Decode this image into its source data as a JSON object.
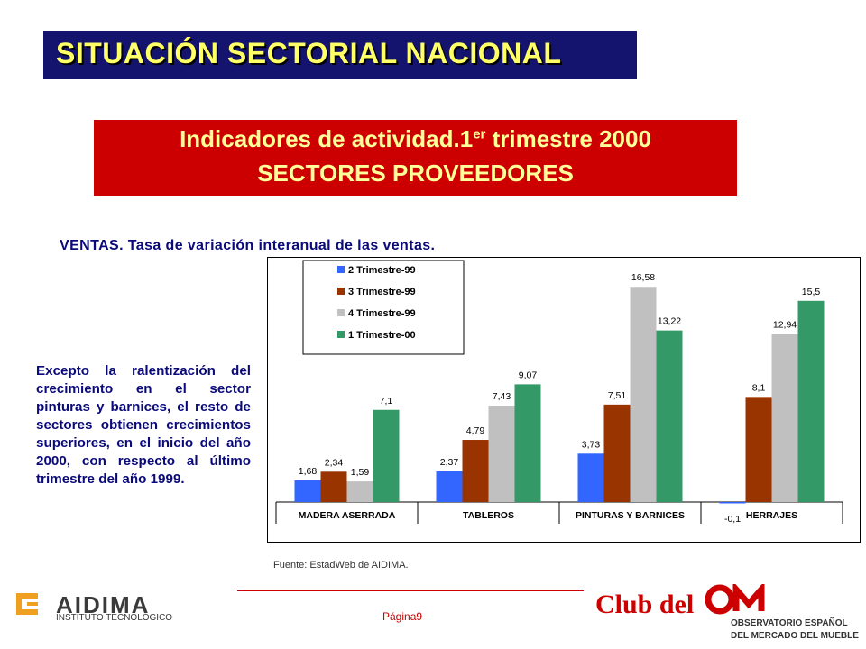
{
  "header": {
    "title": "SITUACIÓN SECTORIAL NACIONAL"
  },
  "banner": {
    "line1_main": "Indicadores de actividad.1",
    "line1_sup": "er",
    "line1_rest": " trimestre 2000",
    "line2": "SECTORES PROVEEDORES"
  },
  "ventas_label": "VENTAS.  Tasa de variación interanual de las ventas.",
  "commentary": "Excepto la ralentización del crecimiento en el sector pinturas y barnices, el resto de sectores obtienen crecimientos superiores, en el inicio del año 2000, con respecto al último trimestre del año 1999.",
  "source": "Fuente: EstadWeb de AIDIMA.",
  "page_label": "Página9",
  "footer": {
    "aidima_name": "AIDIMA",
    "aidima_sub": "INSTITUTO TECNOLÓGICO",
    "club_text": "Club del",
    "obs_line1": "OBSERVATORIO ESPAÑOL",
    "obs_line2": "DEL MERCADO DEL MUEBLE"
  },
  "colors": {
    "title_bg": "#14136e",
    "title_text": "#ffff66",
    "banner_bg": "#cc0000",
    "banner_text": "#ffff99",
    "body_text": "#0a0a7a"
  },
  "chart_data": {
    "type": "bar",
    "categories": [
      "MADERA ASERRADA",
      "TABLEROS",
      "PINTURAS Y BARNICES",
      "HERRAJES"
    ],
    "series": [
      {
        "name": "2 Trimestre-99",
        "color": "#3366ff",
        "values": [
          1.68,
          2.37,
          3.73,
          -0.1
        ],
        "labels": [
          "1,68",
          "2,37",
          "3,73",
          "-0,1"
        ]
      },
      {
        "name": "3 Trimestre-99",
        "color": "#993300",
        "values": [
          2.34,
          4.79,
          7.51,
          8.1
        ],
        "labels": [
          "2,34",
          "4,79",
          "7,51",
          "8,1"
        ]
      },
      {
        "name": "4 Trimestre-99",
        "color": "#c0c0c0",
        "values": [
          1.59,
          7.43,
          16.58,
          12.94
        ],
        "labels": [
          "1,59",
          "7,43",
          "16,58",
          "12,94"
        ]
      },
      {
        "name": "1 Trimestre-00",
        "color": "#339966",
        "values": [
          7.1,
          9.07,
          13.22,
          15.5
        ],
        "labels": [
          "7,1",
          "9,07",
          "13,22",
          "15,5"
        ]
      }
    ],
    "ylim": [
      -0.1,
      17.5
    ],
    "legend_position": "top-left",
    "grid": false
  }
}
